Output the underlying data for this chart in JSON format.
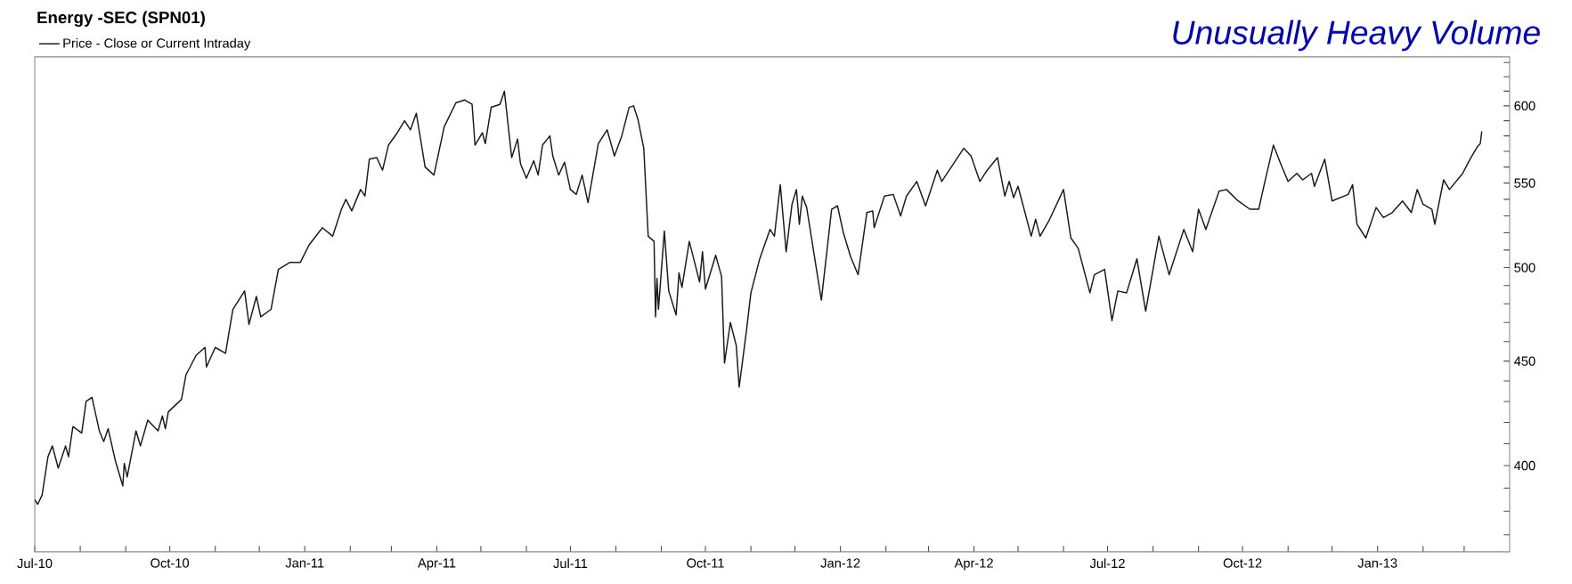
{
  "chart_data": {
    "type": "line",
    "title": "Energy -SEC (SPN01)",
    "annotations": [
      "Unusually Heavy Volume"
    ],
    "log": "y",
    "legend": "top left",
    "marker": "none",
    "line_style": "solid",
    "xlim": [
      "2010-07-01",
      "2013-04-01"
    ],
    "ylim": [
      363,
      634
    ],
    "xticks": [
      {
        "value": "2010-07-01",
        "label": "Jul-10"
      },
      {
        "value": "2010-08-01",
        "label": null
      },
      {
        "value": "2010-09-01",
        "label": null
      },
      {
        "value": "2010-10-01",
        "label": "Oct-10"
      },
      {
        "value": "2010-11-01",
        "label": null
      },
      {
        "value": "2010-12-01",
        "label": null
      },
      {
        "value": "2011-01-01",
        "label": "Jan-11"
      },
      {
        "value": "2011-02-01",
        "label": null
      },
      {
        "value": "2011-03-01",
        "label": null
      },
      {
        "value": "2011-04-01",
        "label": "Apr-11"
      },
      {
        "value": "2011-05-01",
        "label": null
      },
      {
        "value": "2011-06-01",
        "label": null
      },
      {
        "value": "2011-07-01",
        "label": "Jul-11"
      },
      {
        "value": "2011-08-01",
        "label": null
      },
      {
        "value": "2011-09-01",
        "label": null
      },
      {
        "value": "2011-10-01",
        "label": "Oct-11"
      },
      {
        "value": "2011-11-01",
        "label": null
      },
      {
        "value": "2011-12-01",
        "label": null
      },
      {
        "value": "2012-01-01",
        "label": "Jan-12"
      },
      {
        "value": "2012-02-01",
        "label": null
      },
      {
        "value": "2012-03-01",
        "label": null
      },
      {
        "value": "2012-04-01",
        "label": "Apr-12"
      },
      {
        "value": "2012-05-01",
        "label": null
      },
      {
        "value": "2012-06-01",
        "label": null
      },
      {
        "value": "2012-07-01",
        "label": "Jul-12"
      },
      {
        "value": "2012-08-01",
        "label": null
      },
      {
        "value": "2012-09-01",
        "label": null
      },
      {
        "value": "2012-10-01",
        "label": "Oct-12"
      },
      {
        "value": "2012-11-01",
        "label": null
      },
      {
        "value": "2012-12-01",
        "label": null
      },
      {
        "value": "2013-01-01",
        "label": "Jan-13"
      },
      {
        "value": "2013-02-01",
        "label": null
      },
      {
        "value": "2013-03-01",
        "label": null
      }
    ],
    "yticks": [
      {
        "value": 370,
        "label": null
      },
      {
        "value": 380,
        "label": null
      },
      {
        "value": 390,
        "label": null
      },
      400,
      {
        "value": 410,
        "label": null
      },
      {
        "value": 420,
        "label": null
      },
      {
        "value": 430,
        "label": null
      },
      {
        "value": 440,
        "label": null
      },
      450,
      {
        "value": 460,
        "label": null
      },
      {
        "value": 470,
        "label": null
      },
      {
        "value": 480,
        "label": null
      },
      {
        "value": 490,
        "label": null
      },
      500,
      {
        "value": 510,
        "label": null
      },
      {
        "value": 520,
        "label": null
      },
      {
        "value": 530,
        "label": null
      },
      {
        "value": 540,
        "label": null
      },
      550,
      {
        "value": 560,
        "label": null
      },
      {
        "value": 570,
        "label": null
      },
      {
        "value": 580,
        "label": null
      },
      {
        "value": 590,
        "label": null
      },
      600,
      {
        "value": 610,
        "label": null
      },
      {
        "value": 620,
        "label": null
      },
      {
        "value": 630,
        "label": null
      }
    ],
    "series": [
      {
        "name": "Price - Close or Current Intraday",
        "color": "#1a1a1a",
        "x": [
          "2010-07-01",
          "2010-07-03",
          "2010-07-06",
          "2010-07-10",
          "2010-07-13",
          "2010-07-17",
          "2010-07-22",
          "2010-07-24",
          "2010-07-27",
          "2010-08-02",
          "2010-08-05",
          "2010-08-09",
          "2010-08-14",
          "2010-08-17",
          "2010-08-20",
          "2010-08-25",
          "2010-08-30",
          "2010-08-31",
          "2010-09-02",
          "2010-09-08",
          "2010-09-11",
          "2010-09-16",
          "2010-09-23",
          "2010-09-26",
          "2010-09-28",
          "2010-09-30",
          "2010-10-09",
          "2010-10-12",
          "2010-10-19",
          "2010-10-25",
          "2010-10-26",
          "2010-11-01",
          "2010-11-08",
          "2010-11-13",
          "2010-11-21",
          "2010-11-24",
          "2010-11-29",
          "2010-12-02",
          "2010-12-09",
          "2010-12-14",
          "2010-12-22",
          "2010-12-29",
          "2011-01-04",
          "2011-01-13",
          "2011-01-20",
          "2011-01-26",
          "2011-01-29",
          "2011-02-02",
          "2011-02-08",
          "2011-02-11",
          "2011-02-14",
          "2011-02-19",
          "2011-02-23",
          "2011-02-27",
          "2011-03-05",
          "2011-03-10",
          "2011-03-14",
          "2011-03-18",
          "2011-03-24",
          "2011-03-30",
          "2011-04-06",
          "2011-04-14",
          "2011-04-20",
          "2011-04-25",
          "2011-04-27",
          "2011-05-02",
          "2011-05-04",
          "2011-05-08",
          "2011-05-14",
          "2011-05-17",
          "2011-05-22",
          "2011-05-26",
          "2011-05-28",
          "2011-06-01",
          "2011-06-06",
          "2011-06-09",
          "2011-06-12",
          "2011-06-17",
          "2011-06-19",
          "2011-06-23",
          "2011-06-27",
          "2011-07-01",
          "2011-07-05",
          "2011-07-09",
          "2011-07-13",
          "2011-07-20",
          "2011-07-26",
          "2011-07-31",
          "2011-08-05",
          "2011-08-10",
          "2011-08-13",
          "2011-08-16",
          "2011-08-20",
          "2011-08-23",
          "2011-08-27",
          "2011-08-28",
          "2011-08-29",
          "2011-08-30",
          "2011-09-03",
          "2011-09-06",
          "2011-09-11",
          "2011-09-13",
          "2011-09-15",
          "2011-09-20",
          "2011-09-27",
          "2011-09-29",
          "2011-10-01",
          "2011-10-08",
          "2011-10-12",
          "2011-10-14",
          "2011-10-18",
          "2011-10-22",
          "2011-10-24",
          "2011-10-29",
          "2011-11-01",
          "2011-11-07",
          "2011-11-14",
          "2011-11-17",
          "2011-11-21",
          "2011-11-25",
          "2011-11-29",
          "2011-12-02",
          "2011-12-04",
          "2011-12-06",
          "2011-12-09",
          "2011-12-19",
          "2011-12-26",
          "2011-12-30",
          "2012-01-03",
          "2012-01-08",
          "2012-01-13",
          "2012-01-19",
          "2012-01-23",
          "2012-01-24",
          "2012-01-31",
          "2012-02-06",
          "2012-02-11",
          "2012-02-15",
          "2012-02-22",
          "2012-02-28",
          "2012-03-07",
          "2012-03-10",
          "2012-03-25",
          "2012-03-30",
          "2012-04-05",
          "2012-04-10",
          "2012-04-17",
          "2012-04-22",
          "2012-04-25",
          "2012-04-28",
          "2012-05-01",
          "2012-05-10",
          "2012-05-13",
          "2012-05-16",
          "2012-05-22",
          "2012-06-01",
          "2012-06-06",
          "2012-06-11",
          "2012-06-19",
          "2012-06-22",
          "2012-06-29",
          "2012-07-04",
          "2012-07-08",
          "2012-07-14",
          "2012-07-21",
          "2012-07-27",
          "2012-08-05",
          "2012-08-12",
          "2012-08-22",
          "2012-08-28",
          "2012-09-01",
          "2012-09-06",
          "2012-09-15",
          "2012-09-20",
          "2012-09-28",
          "2012-10-06",
          "2012-10-12",
          "2012-10-16",
          "2012-10-22",
          "2012-10-27",
          "2012-11-01",
          "2012-11-07",
          "2012-11-11",
          "2012-11-17",
          "2012-11-19",
          "2012-11-26",
          "2012-12-01",
          "2012-12-12",
          "2012-12-15",
          "2012-12-18",
          "2012-12-24",
          "2012-12-31",
          "2013-01-05",
          "2013-01-11",
          "2013-01-18",
          "2013-01-24",
          "2013-01-28",
          "2013-02-01",
          "2013-02-07",
          "2013-02-09",
          "2013-02-15",
          "2013-02-19",
          "2013-02-28",
          "2013-03-05",
          "2013-03-10",
          "2013-03-12",
          "2013-03-13"
        ],
        "values": [
          385,
          383,
          387,
          404,
          409,
          399,
          409,
          404,
          418,
          415,
          430,
          432,
          416,
          411,
          417,
          402,
          391,
          401,
          395,
          416,
          409,
          421,
          416,
          423,
          417,
          425,
          431,
          443,
          453,
          457,
          447,
          457,
          454,
          477,
          487,
          469,
          484,
          473,
          477,
          499,
          503,
          503,
          513,
          523,
          518,
          534,
          540,
          533,
          546,
          542,
          565,
          566,
          558,
          574,
          582,
          590,
          584,
          595,
          560,
          555,
          586,
          602,
          604,
          601,
          574,
          582,
          575,
          599,
          601,
          610,
          566,
          578,
          562,
          553,
          564,
          555,
          574,
          580,
          567,
          555,
          563,
          546,
          543,
          555,
          538,
          575,
          584,
          567,
          580,
          599,
          600,
          591,
          572,
          518,
          515,
          473,
          494,
          477,
          521,
          487,
          474,
          497,
          489,
          515,
          492,
          509,
          488,
          507,
          495,
          449,
          470,
          458,
          437,
          466,
          486,
          505,
          522,
          518,
          549,
          509,
          537,
          546,
          525,
          542,
          535,
          482,
          534,
          536,
          520,
          506,
          496,
          532,
          533,
          523,
          542,
          543,
          530,
          542,
          551,
          536,
          558,
          551,
          572,
          567,
          551,
          558,
          566,
          542,
          551,
          541,
          548,
          518,
          528,
          518,
          527,
          546,
          517,
          511,
          486,
          496,
          499,
          471,
          487,
          486,
          505,
          476,
          518,
          496,
          522,
          509,
          534,
          522,
          545,
          546,
          539,
          534,
          534,
          550,
          574,
          562,
          551,
          556,
          552,
          556,
          548,
          565,
          539,
          543,
          549,
          525,
          517,
          535,
          529,
          532,
          539,
          532,
          546,
          537,
          534,
          525,
          552,
          546,
          556,
          565,
          573,
          575,
          583
        ]
      }
    ]
  }
}
